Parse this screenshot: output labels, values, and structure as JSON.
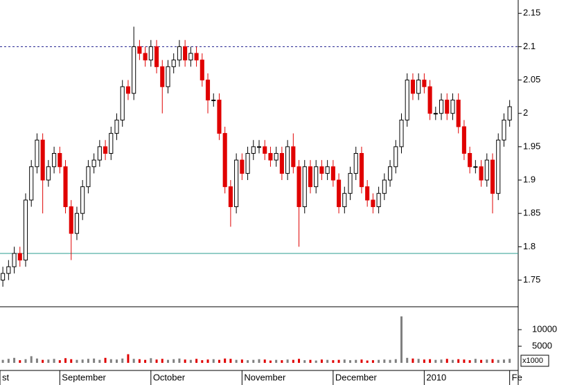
{
  "chart_data": {
    "type": "candlestick",
    "open": [
      1.75,
      1.76,
      1.77,
      1.79,
      1.78,
      1.87,
      1.92,
      1.96,
      1.9,
      1.92,
      1.94,
      1.92,
      1.86,
      1.82,
      1.85,
      1.89,
      1.92,
      1.93,
      1.95,
      1.94,
      1.97,
      1.99,
      2.04,
      2.03,
      2.1,
      2.09,
      2.08,
      2.1,
      2.07,
      2.04,
      2.07,
      2.08,
      2.1,
      2.08,
      2.09,
      2.08,
      2.05,
      2.02,
      2.02,
      1.97,
      1.89,
      1.86,
      1.93,
      1.91,
      1.94,
      1.95,
      1.95,
      1.94,
      1.93,
      1.94,
      1.91,
      1.95,
      1.92,
      1.86,
      1.92,
      1.89,
      1.92,
      1.91,
      1.92,
      1.9,
      1.86,
      1.88,
      1.91,
      1.94,
      1.89,
      1.87,
      1.86,
      1.88,
      1.9,
      1.92,
      1.95,
      1.99,
      2.05,
      2.03,
      2.05,
      2.04,
      2.0,
      2.0,
      2.02,
      2.0,
      2.02,
      1.98,
      1.94,
      1.92,
      1.92,
      1.9,
      1.93,
      1.88,
      1.96,
      1.99
    ],
    "high": [
      1.77,
      1.78,
      1.8,
      1.8,
      1.88,
      1.93,
      1.97,
      1.97,
      1.93,
      1.95,
      1.95,
      1.93,
      1.87,
      1.86,
      1.9,
      1.93,
      1.94,
      1.96,
      1.96,
      1.98,
      2.0,
      2.05,
      2.05,
      2.13,
      2.11,
      2.1,
      2.11,
      2.11,
      2.08,
      2.08,
      2.09,
      2.11,
      2.11,
      2.1,
      2.1,
      2.09,
      2.06,
      2.03,
      2.03,
      1.98,
      1.9,
      1.94,
      1.94,
      1.95,
      1.96,
      1.96,
      1.96,
      1.95,
      1.95,
      1.95,
      1.96,
      1.97,
      1.93,
      1.93,
      1.93,
      1.93,
      1.93,
      1.93,
      1.93,
      1.91,
      1.89,
      1.92,
      1.95,
      1.95,
      1.9,
      1.88,
      1.89,
      1.91,
      1.93,
      1.96,
      2.0,
      2.06,
      2.06,
      2.06,
      2.06,
      2.05,
      2.01,
      2.03,
      2.03,
      2.03,
      2.03,
      1.99,
      1.95,
      1.93,
      1.93,
      1.94,
      1.94,
      1.97,
      2.0,
      2.02
    ],
    "low": [
      1.74,
      1.75,
      1.76,
      1.77,
      1.77,
      1.86,
      1.91,
      1.85,
      1.89,
      1.91,
      1.91,
      1.85,
      1.78,
      1.81,
      1.84,
      1.88,
      1.91,
      1.92,
      1.93,
      1.93,
      1.96,
      1.98,
      2.02,
      2.02,
      2.08,
      2.07,
      2.07,
      2.06,
      2.0,
      2.03,
      2.06,
      2.07,
      2.07,
      2.07,
      2.07,
      2.04,
      2.0,
      2.01,
      1.96,
      1.88,
      1.83,
      1.85,
      1.9,
      1.9,
      1.93,
      1.94,
      1.93,
      1.92,
      1.92,
      1.9,
      1.9,
      1.91,
      1.8,
      1.85,
      1.88,
      1.88,
      1.9,
      1.9,
      1.89,
      1.85,
      1.85,
      1.87,
      1.9,
      1.88,
      1.86,
      1.85,
      1.85,
      1.87,
      1.89,
      1.91,
      1.94,
      1.98,
      2.02,
      2.02,
      2.03,
      1.99,
      1.99,
      1.99,
      1.99,
      1.99,
      1.97,
      1.93,
      1.91,
      1.91,
      1.89,
      1.89,
      1.85,
      1.87,
      1.95,
      1.98
    ],
    "close": [
      1.76,
      1.77,
      1.79,
      1.78,
      1.87,
      1.92,
      1.96,
      1.9,
      1.92,
      1.94,
      1.92,
      1.86,
      1.82,
      1.85,
      1.89,
      1.92,
      1.93,
      1.95,
      1.94,
      1.97,
      1.99,
      2.04,
      2.03,
      2.1,
      2.09,
      2.08,
      2.1,
      2.07,
      2.04,
      2.07,
      2.08,
      2.1,
      2.08,
      2.09,
      2.08,
      2.05,
      2.02,
      2.02,
      1.97,
      1.89,
      1.86,
      1.93,
      1.91,
      1.94,
      1.95,
      1.95,
      1.94,
      1.93,
      1.94,
      1.91,
      1.95,
      1.92,
      1.86,
      1.92,
      1.89,
      1.92,
      1.91,
      1.92,
      1.9,
      1.86,
      1.88,
      1.91,
      1.94,
      1.89,
      1.87,
      1.86,
      1.88,
      1.9,
      1.92,
      1.95,
      1.99,
      2.05,
      2.03,
      2.05,
      2.04,
      2.0,
      2.0,
      2.02,
      2.0,
      2.02,
      1.98,
      1.94,
      1.92,
      1.92,
      1.9,
      1.93,
      1.88,
      1.96,
      1.99,
      2.01
    ],
    "volume": [
      900,
      1200,
      1500,
      800,
      1100,
      2000,
      1300,
      900,
      1000,
      1200,
      800,
      1400,
      1100,
      900,
      1000,
      1200,
      1300,
      900,
      1500,
      1100,
      1000,
      1300,
      2600,
      1200,
      1100,
      900,
      1400,
      1000,
      1200,
      900,
      1100,
      1300,
      1000,
      900,
      1200,
      800,
      1000,
      1100,
      900,
      1300,
      1200,
      900,
      1000,
      800,
      900,
      1100,
      1000,
      700,
      900,
      800,
      1000,
      900,
      1200,
      800,
      900,
      700,
      1000,
      900,
      800,
      900,
      1000,
      800,
      900,
      1000,
      700,
      800,
      900,
      1000,
      900,
      1100,
      14000,
      1500,
      1300,
      1200,
      1000,
      1100,
      900,
      1000,
      1200,
      900,
      1100,
      1000,
      800,
      1200,
      900,
      1000,
      1100,
      900,
      1000,
      1200
    ],
    "up_color": "#ffffff",
    "down_color": "#e00000",
    "wick_color": "#000000",
    "volume_up_color": "#808080",
    "volume_down_color": "#e00000",
    "xlim": [
      -0.5,
      90.5
    ],
    "xticks": [
      {
        "value": -0.5,
        "label": "st"
      },
      {
        "value": 10,
        "label": "September"
      },
      {
        "value": 26,
        "label": "October"
      },
      {
        "value": 42,
        "label": "November"
      },
      {
        "value": 58,
        "label": "December"
      },
      {
        "value": 74,
        "label": "2010"
      },
      {
        "value": 89,
        "label": "Fe"
      }
    ],
    "ylim": [
      1.71,
      2.17
    ],
    "yticks": [
      1.75,
      1.8,
      1.85,
      1.9,
      1.95,
      2.0,
      2.05,
      2.1,
      2.15
    ],
    "y2lim": [
      0,
      16900
    ],
    "y2ticks": [
      5000,
      10000
    ],
    "volume_unit_label": "x1000",
    "reference_lines": [
      {
        "value": 2.1,
        "color": "#1a1a8c",
        "style": "dashed"
      },
      {
        "value": 1.79,
        "color": "#2a9d8f",
        "style": "solid"
      }
    ]
  }
}
